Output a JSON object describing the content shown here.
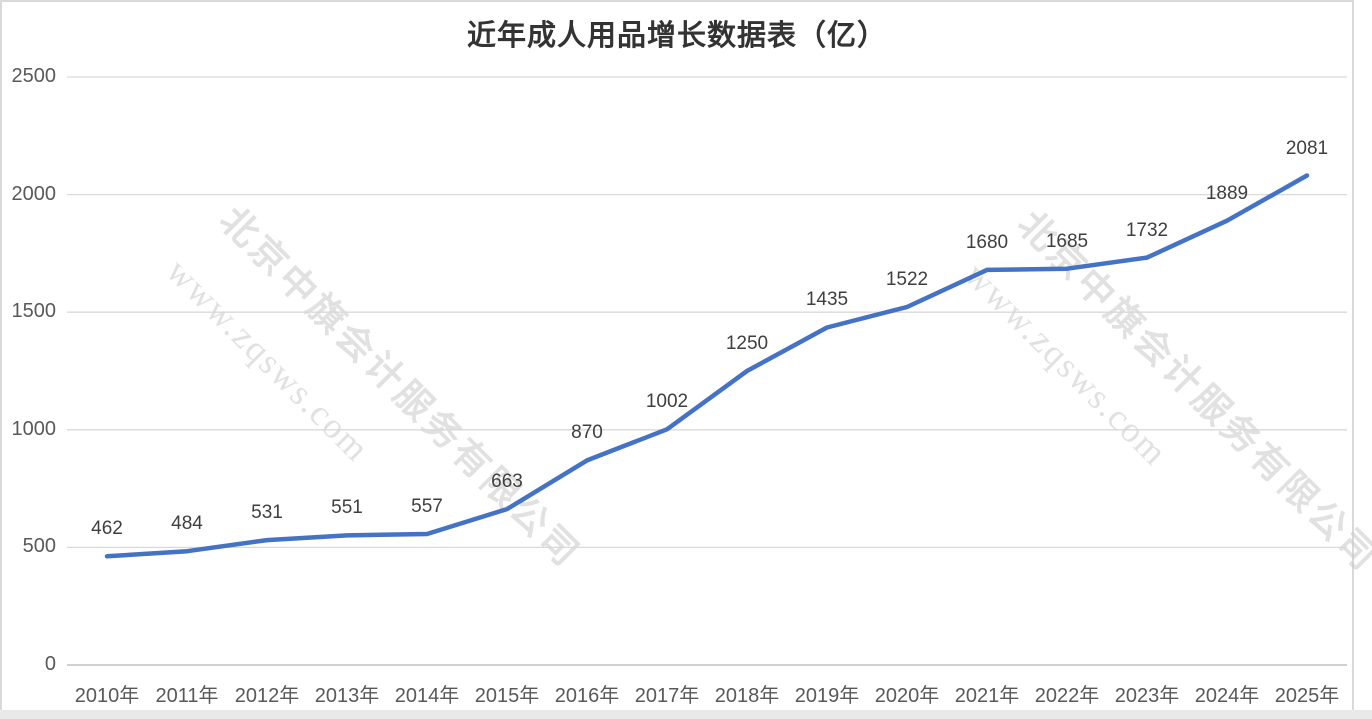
{
  "title": {
    "text": "近年成人用品增长数据表（亿）"
  },
  "watermark": {
    "site_line": "www.zqsws.com",
    "company_line": "北京中旗会计服务有限公司"
  },
  "chart_data": {
    "type": "line",
    "title": "近年成人用品增长数据表（亿）",
    "categories": [
      "2010年",
      "2011年",
      "2012年",
      "2013年",
      "2014年",
      "2015年",
      "2016年",
      "2017年",
      "2018年",
      "2019年",
      "2020年",
      "2021年",
      "2022年",
      "2023年",
      "2024年",
      "2025年"
    ],
    "values": [
      462,
      484,
      531,
      551,
      557,
      663,
      870,
      1002,
      1250,
      1435,
      1522,
      1680,
      1685,
      1732,
      1889,
      2081
    ],
    "ylim": [
      0,
      2500
    ],
    "yticks": [
      0,
      500,
      1000,
      1500,
      2000,
      2500
    ],
    "grid": true,
    "legend": "none",
    "data_labels": true,
    "colors": {
      "line": "#4472C4",
      "gridline": "#d9d9d9",
      "axis_line": "#b3b3b3",
      "tick_label": "#595959",
      "data_label": "#3f3f3f",
      "title": "#333333",
      "watermark": "#c9c9c9",
      "border": "#d9d9d9",
      "bottom_bar": "#e9e9e9"
    }
  }
}
